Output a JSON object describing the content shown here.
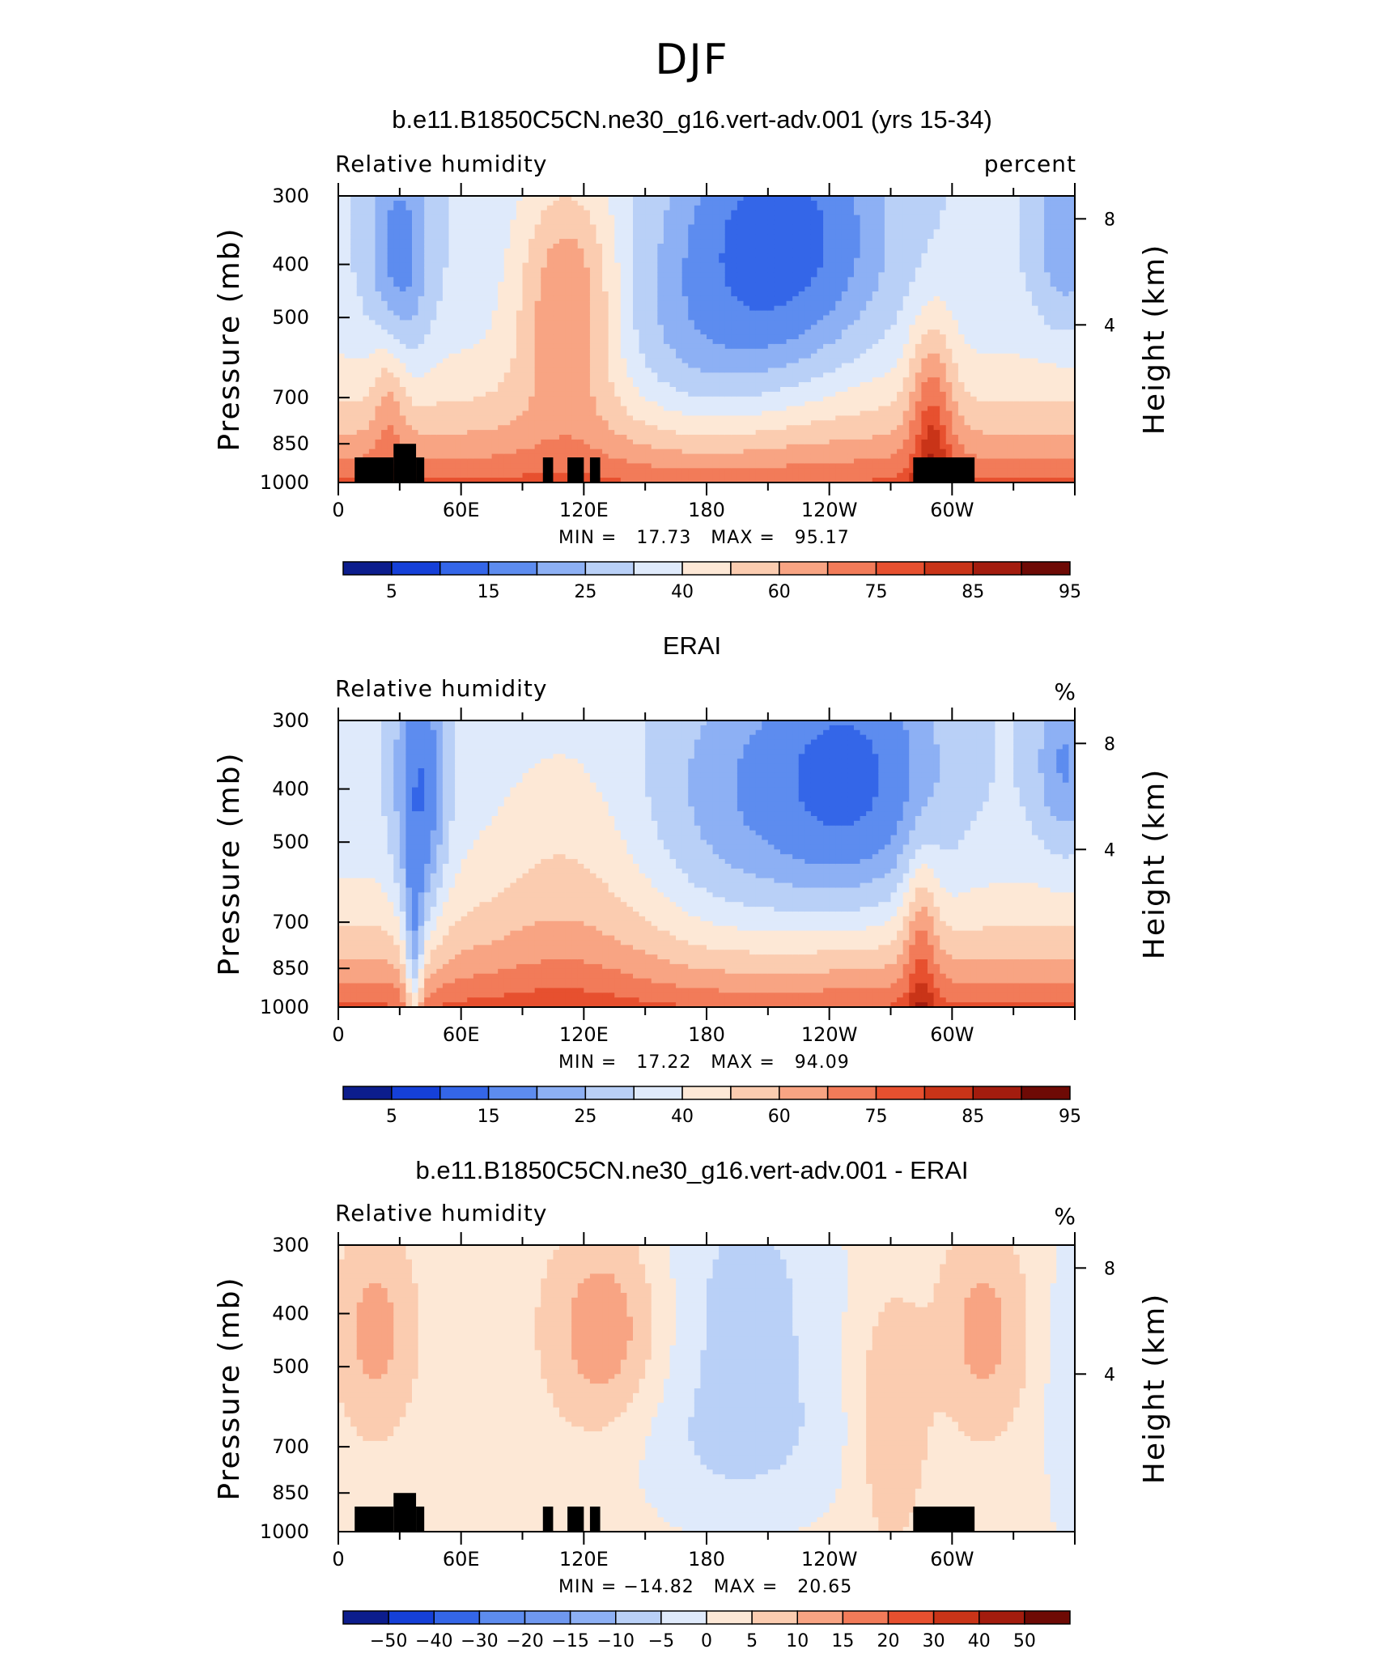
{
  "main_title": "DJF",
  "panels": [
    {
      "title": "b.e11.B1850C5CN.ne30_g16.vert-adv.001 (yrs 15-34)",
      "var_label": "Relative humidity",
      "unit_label": "percent",
      "ylabel": "Pressure (mb)",
      "ylabel_right": "Height (km)",
      "stats": "MIN =   17.73   MAX =   95.17"
    },
    {
      "title": "ERAI",
      "var_label": "Relative humidity",
      "unit_label": "%",
      "ylabel": "Pressure (mb)",
      "ylabel_right": "Height (km)",
      "stats": "MIN =   17.22   MAX =   94.09"
    },
    {
      "title": "b.e11.B1850C5CN.ne30_g16.vert-adv.001 - ERAI",
      "var_label": "Relative humidity",
      "unit_label": "%",
      "ylabel": "Pressure (mb)",
      "ylabel_right": "Height (km)",
      "stats": "MIN = −14.82   MAX =   20.65"
    }
  ],
  "chart_data": [
    {
      "type": "heatmap",
      "title": "b.e11.B1850C5CN.ne30_g16.vert-adv.001 (yrs 15-34)",
      "subtitle_left": "Relative humidity",
      "subtitle_right": "percent",
      "x_ticks": [
        "0",
        "60E",
        "120E",
        "180",
        "120W",
        "60W"
      ],
      "x_range": [
        0,
        360
      ],
      "y_ticks": [
        "300",
        "400",
        "500",
        "700",
        "850",
        "1000"
      ],
      "y_range_mb": [
        300,
        1000
      ],
      "y_log_scale": true,
      "y_right_ticks": [
        "4",
        "8"
      ],
      "min": 17.73,
      "max": 95.17,
      "colorbar_labels": [
        "5",
        "15",
        "25",
        "40",
        "60",
        "75",
        "85",
        "95"
      ],
      "colors": [
        "#0c1d8d",
        "#1540d8",
        "#3466e8",
        "#5d8cef",
        "#8db0f4",
        "#b9d0f7",
        "#dfeafb",
        "#fde8d6",
        "#fbccb0",
        "#f8a483",
        "#f27b59",
        "#e7502f",
        "#c93418",
        "#a31c0e",
        "#6e0a05"
      ],
      "description": "Humid (red) near surface across longitudes; dry (blue) aloft near 180-120W and near 30E and 355E"
    },
    {
      "type": "heatmap",
      "title": "ERAI",
      "subtitle_left": "Relative humidity",
      "subtitle_right": "%",
      "x_ticks": [
        "0",
        "60E",
        "120E",
        "180",
        "120W",
        "60W"
      ],
      "x_range": [
        0,
        360
      ],
      "y_ticks": [
        "300",
        "400",
        "500",
        "700",
        "850",
        "1000"
      ],
      "y_range_mb": [
        300,
        1000
      ],
      "y_log_scale": true,
      "y_right_ticks": [
        "4",
        "8"
      ],
      "min": 17.22,
      "max": 94.09,
      "colorbar_labels": [
        "5",
        "15",
        "25",
        "40",
        "60",
        "75",
        "85",
        "95"
      ],
      "colors": [
        "#0c1d8d",
        "#1540d8",
        "#3466e8",
        "#5d8cef",
        "#8db0f4",
        "#b9d0f7",
        "#dfeafb",
        "#fde8d6",
        "#fbccb0",
        "#f8a483",
        "#f27b59",
        "#e7502f",
        "#c93418",
        "#a31c0e",
        "#6e0a05"
      ]
    },
    {
      "type": "heatmap",
      "title": "b.e11.B1850C5CN.ne30_g16.vert-adv.001 - ERAI",
      "subtitle_left": "Relative humidity",
      "subtitle_right": "%",
      "x_ticks": [
        "0",
        "60E",
        "120E",
        "180",
        "120W",
        "60W"
      ],
      "x_range": [
        0,
        360
      ],
      "y_ticks": [
        "300",
        "400",
        "500",
        "700",
        "850",
        "1000"
      ],
      "y_range_mb": [
        300,
        1000
      ],
      "y_log_scale": true,
      "y_right_ticks": [
        "4",
        "8"
      ],
      "min": -14.82,
      "max": 20.65,
      "colorbar_labels": [
        "−50",
        "−40",
        "−30",
        "−20",
        "−15",
        "−10",
        "−5",
        "0",
        "5",
        "10",
        "15",
        "20",
        "30",
        "40",
        "50"
      ],
      "colors": [
        "#0c1d8d",
        "#1540d8",
        "#3466e8",
        "#5d8cef",
        "#6f98f0",
        "#8db0f4",
        "#b9d0f7",
        "#dfeafb",
        "#fde8d6",
        "#fbccb0",
        "#f8a483",
        "#f27b59",
        "#e7502f",
        "#c93418",
        "#a31c0e",
        "#6e0a05"
      ]
    }
  ]
}
